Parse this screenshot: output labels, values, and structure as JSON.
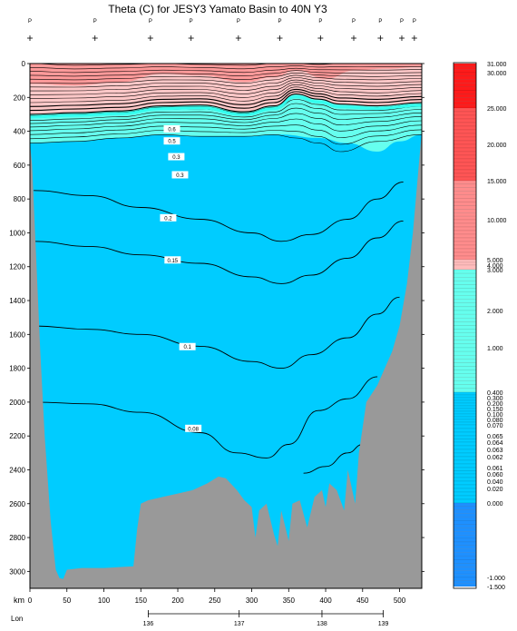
{
  "chart_data": {
    "type": "section-contour",
    "title": "Theta (C) for JESY3 Yamato Basin to 40N Y3",
    "y_axis": {
      "range": [
        0,
        3100
      ],
      "ticks": [
        0,
        200,
        400,
        600,
        800,
        1000,
        1200,
        1400,
        1600,
        1800,
        2000,
        2200,
        2400,
        2600,
        2800,
        3000
      ]
    },
    "x_axis": {
      "label": "km",
      "range": [
        0,
        530
      ],
      "ticks": [
        0,
        50,
        100,
        150,
        200,
        250,
        300,
        350,
        400,
        450,
        500
      ]
    },
    "lon_axis": {
      "label": "Lon",
      "ticks": [
        {
          "km": 160,
          "label": "136"
        },
        {
          "km": 283,
          "label": "137"
        },
        {
          "km": 395,
          "label": "138"
        },
        {
          "km": 478,
          "label": "139"
        }
      ]
    },
    "stations": [
      {
        "km": 0,
        "label": "P"
      },
      {
        "km": 88,
        "label": "P"
      },
      {
        "km": 163,
        "label": "P"
      },
      {
        "km": 218,
        "label": "P"
      },
      {
        "km": 282,
        "label": "P"
      },
      {
        "km": 338,
        "label": "P"
      },
      {
        "km": 393,
        "label": "P"
      },
      {
        "km": 438,
        "label": "P"
      },
      {
        "km": 474,
        "label": "P"
      },
      {
        "km": 503,
        "label": "P"
      },
      {
        "km": 520,
        "label": "P"
      }
    ],
    "contour_labels": [
      {
        "label": "0.6",
        "km": 192,
        "depth": 386
      },
      {
        "label": "0.5",
        "km": 192,
        "depth": 457
      },
      {
        "label": "0.3",
        "km": 198,
        "depth": 550
      },
      {
        "label": "0.3",
        "km": 203,
        "depth": 657
      },
      {
        "label": "0.2",
        "km": 187,
        "depth": 911
      },
      {
        "label": "0.15",
        "km": 193,
        "depth": 1160
      },
      {
        "label": "0.1",
        "km": 213,
        "depth": 1672
      },
      {
        "label": "0.08",
        "km": 221,
        "depth": 2155
      }
    ],
    "contour_lines": [
      {
        "value": 0.2,
        "km": [
          5,
          80,
          150,
          230,
          300,
          340,
          380,
          430,
          470,
          505
        ],
        "depth": [
          750,
          780,
          850,
          920,
          1000,
          1050,
          1010,
          920,
          800,
          700
        ]
      },
      {
        "value": 0.15,
        "km": [
          5,
          80,
          150,
          230,
          300,
          340,
          380,
          430,
          470,
          505
        ],
        "depth": [
          1050,
          1080,
          1130,
          1180,
          1260,
          1300,
          1250,
          1150,
          1030,
          930
        ]
      },
      {
        "value": 0.1,
        "km": [
          5,
          80,
          150,
          230,
          300,
          340,
          380,
          430,
          470,
          500
        ],
        "depth": [
          1550,
          1570,
          1600,
          1670,
          1760,
          1800,
          1720,
          1620,
          1480,
          1380
        ]
      },
      {
        "value": 0.08,
        "km": [
          5,
          80,
          150,
          230,
          280,
          320,
          350,
          390,
          430,
          470
        ],
        "depth": [
          2000,
          2010,
          2060,
          2180,
          2300,
          2330,
          2250,
          2050,
          1980,
          1850
        ]
      },
      {
        "value": 0.07,
        "km": [
          370,
          400,
          430,
          450
        ],
        "depth": [
          2420,
          2380,
          2300,
          2250
        ]
      }
    ],
    "colorbar": {
      "min": -1.5,
      "max": 31.0,
      "tick_labels": [
        "31.000",
        "30.000",
        "25.000",
        "20.000",
        "15.000",
        "10.000",
        "5.000",
        "4.000",
        "3.000",
        "2.000",
        "1.000",
        "0.400",
        "0.300",
        "0.200",
        "0.150",
        "0.100",
        "0.080",
        "0.070",
        "0.065",
        "0.064",
        "0.063",
        "0.062",
        "0.061",
        "0.060",
        "0.040",
        "0.020",
        "0.000",
        "-1.000",
        "-1.500"
      ]
    },
    "colors": {
      "bottom_water": "#00ccff",
      "thermocline": "#66ffee",
      "warm_surface": "#ffc8c8",
      "bathymetry": "#999999"
    }
  }
}
